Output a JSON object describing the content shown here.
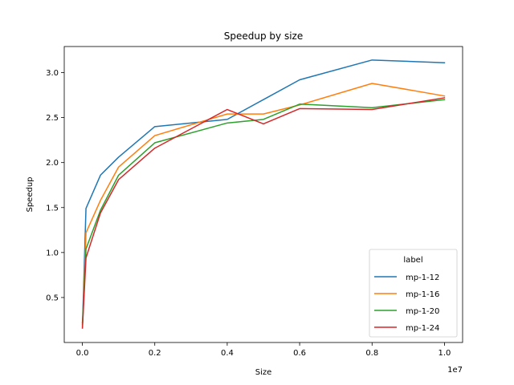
{
  "chart_data": {
    "type": "line",
    "title": "Speedup by size",
    "xlabel": "Size",
    "ylabel": "Speedup",
    "x_offset_label": "1e7",
    "xlim": [
      -500000,
      10500000
    ],
    "ylim": [
      0.0,
      3.29
    ],
    "x_ticks": [
      0,
      2000000,
      4000000,
      6000000,
      8000000,
      10000000
    ],
    "x_tick_labels": [
      "0.0",
      "0.2",
      "0.4",
      "0.6",
      "0.8",
      "1.0"
    ],
    "y_ticks": [
      0.5,
      1.0,
      1.5,
      2.0,
      2.5,
      3.0
    ],
    "y_tick_labels": [
      "0.5",
      "1.0",
      "1.5",
      "2.0",
      "2.5",
      "3.0"
    ],
    "grid": false,
    "legend": {
      "title": "label",
      "position": "lower-right"
    },
    "x": [
      1000,
      10000,
      100000,
      500000,
      1000000,
      2000000,
      4000000,
      5000000,
      6000000,
      8000000,
      10000000
    ],
    "series": [
      {
        "name": "mp-1-12",
        "color": "#1f77b4",
        "values": [
          0.22,
          0.28,
          1.49,
          1.86,
          2.06,
          2.4,
          2.48,
          2.7,
          2.92,
          3.14,
          3.11
        ]
      },
      {
        "name": "mp-1-16",
        "color": "#ff7f0e",
        "values": [
          0.18,
          0.24,
          1.22,
          1.58,
          1.95,
          2.3,
          2.54,
          2.54,
          2.64,
          2.88,
          2.74
        ]
      },
      {
        "name": "mp-1-20",
        "color": "#2ca02c",
        "values": [
          0.2,
          0.26,
          1.04,
          1.47,
          1.86,
          2.22,
          2.44,
          2.48,
          2.65,
          2.61,
          2.7
        ]
      },
      {
        "name": "mp-1-24",
        "color": "#d62728",
        "values": [
          0.16,
          0.22,
          0.94,
          1.44,
          1.81,
          2.16,
          2.59,
          2.43,
          2.6,
          2.59,
          2.72
        ]
      }
    ]
  }
}
